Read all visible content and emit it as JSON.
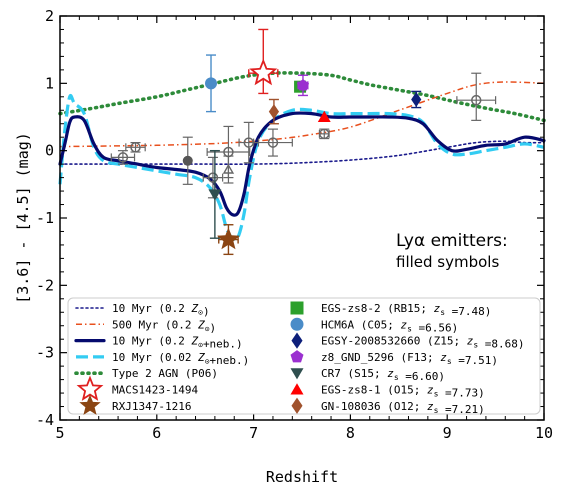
{
  "chart_data": {
    "type": "scatter",
    "xlabel": "Redshift",
    "ylabel": "[3.6] - [4.5] (mag)",
    "xlim": [
      5,
      10
    ],
    "ylim": [
      -4,
      2
    ],
    "x_ticks": [
      "5",
      "6",
      "7",
      "8",
      "9",
      "10"
    ],
    "y_ticks": [
      "-4",
      "-3",
      "-2",
      "-1",
      "0",
      "1",
      "2"
    ],
    "grid": false,
    "legend_location": "lower-center",
    "annotation": {
      "line1": "Lyα emitters:",
      "line2": "filled symbols"
    },
    "colors": {
      "myr10_02": "#1a1a8c",
      "myr500": "#e8501e",
      "neb02": "#050a6e",
      "neb002": "#33ccf2",
      "agn": "#2e8b3a",
      "open_circle": "#666666",
      "macs": "#e02020",
      "rxj": "#8b4513",
      "rb15": "#2ca02c",
      "c05": "#4a8cc8",
      "z15": "#0d1f7a",
      "f13": "#9b30d0",
      "s15": "#2f4f4f",
      "o15": "#ff0000",
      "o12": "#a0522d"
    },
    "series": [
      {
        "id": "myr10_02",
        "name": "10 Myr (0.2 Z_sun)",
        "style": "dotted",
        "x": [
          5.0,
          5.5,
          6.0,
          6.5,
          7.0,
          7.5,
          8.0,
          8.5,
          9.0,
          9.3,
          9.6,
          9.8,
          10.0
        ],
        "y": [
          -0.2,
          -0.2,
          -0.2,
          -0.2,
          -0.2,
          -0.18,
          -0.14,
          -0.07,
          0.05,
          0.12,
          0.14,
          0.12,
          0.12
        ]
      },
      {
        "id": "myr500",
        "name": "500 Myr (0.2 Z_sun)",
        "style": "dashdot",
        "x": [
          5.0,
          5.5,
          6.0,
          6.5,
          6.8,
          7.0,
          7.3,
          7.6,
          8.0,
          8.5,
          9.0,
          9.3,
          9.6,
          10.0
        ],
        "y": [
          0.06,
          0.07,
          0.08,
          0.1,
          0.12,
          0.14,
          0.18,
          0.24,
          0.35,
          0.6,
          0.85,
          0.98,
          1.02,
          1.0
        ]
      },
      {
        "id": "neb02",
        "name": "10 Myr (0.2 Z_sun+neb.)",
        "style": "solid-thick",
        "x": [
          5.0,
          5.05,
          5.1,
          5.15,
          5.25,
          5.35,
          5.45,
          5.6,
          5.8,
          6.0,
          6.2,
          6.4,
          6.55,
          6.65,
          6.72,
          6.78,
          6.84,
          6.9,
          6.96,
          7.05,
          7.2,
          7.4,
          7.6,
          7.8,
          8.0,
          8.2,
          8.4,
          8.6,
          8.75,
          8.9,
          9.05,
          9.2,
          9.4,
          9.6,
          9.8,
          10.0
        ],
        "y": [
          -0.2,
          0.1,
          0.42,
          0.5,
          0.45,
          0.1,
          -0.1,
          -0.15,
          -0.2,
          -0.25,
          -0.28,
          -0.32,
          -0.42,
          -0.6,
          -0.85,
          -0.95,
          -0.92,
          -0.65,
          -0.2,
          0.2,
          0.45,
          0.55,
          0.55,
          0.5,
          0.5,
          0.5,
          0.5,
          0.48,
          0.4,
          0.15,
          0.0,
          0.02,
          0.08,
          0.1,
          0.2,
          0.15
        ]
      },
      {
        "id": "neb002",
        "name": "10 Myr (0.02 Z_sun+neb.)",
        "style": "dashed-thick",
        "x": [
          5.0,
          5.05,
          5.1,
          5.15,
          5.25,
          5.35,
          5.45,
          5.6,
          5.8,
          6.0,
          6.2,
          6.4,
          6.55,
          6.65,
          6.72,
          6.78,
          6.84,
          6.9,
          6.96,
          7.05,
          7.2,
          7.4,
          7.6,
          7.8,
          8.0,
          8.2,
          8.4,
          8.6,
          8.75,
          8.9,
          9.05,
          9.2,
          9.4,
          9.6,
          9.8,
          10.0
        ],
        "y": [
          -0.5,
          0.3,
          0.8,
          0.7,
          0.55,
          0.05,
          -0.15,
          -0.2,
          -0.25,
          -0.3,
          -0.35,
          -0.4,
          -0.55,
          -0.8,
          -1.15,
          -1.3,
          -1.28,
          -0.95,
          -0.4,
          0.15,
          0.45,
          0.6,
          0.6,
          0.55,
          0.55,
          0.55,
          0.55,
          0.52,
          0.42,
          0.1,
          -0.05,
          -0.05,
          0.0,
          0.05,
          0.1,
          0.05
        ]
      },
      {
        "id": "agn",
        "name": "Type 2 AGN (P06)",
        "style": "dotted-thick",
        "x": [
          5.0,
          5.3,
          5.6,
          6.0,
          6.3,
          6.6,
          6.9,
          7.2,
          7.5,
          7.8,
          8.0,
          8.2,
          8.5,
          8.8,
          9.1,
          9.4,
          9.7,
          10.0
        ],
        "y": [
          0.55,
          0.62,
          0.7,
          0.8,
          0.9,
          1.0,
          1.1,
          1.15,
          1.15,
          1.12,
          1.05,
          0.98,
          0.9,
          0.82,
          0.72,
          0.63,
          0.55,
          0.45
        ]
      }
    ],
    "open_points": [
      {
        "x": 5.65,
        "y": -0.1,
        "xerr": 0.12,
        "yerr_low": 0.1,
        "yerr_high": 0.1
      },
      {
        "x": 5.78,
        "y": 0.05,
        "xerr": 0.1,
        "yerr_low": 0.07,
        "yerr_high": 0.07
      },
      {
        "x": 6.58,
        "y": -0.4,
        "xerr": 0.1,
        "yerr_low": 0.3,
        "yerr_high": 0.3
      },
      {
        "x": 6.74,
        "y": -0.28,
        "xerr": 0.0,
        "yerr_low": 0.2,
        "yerr_high": 0.2,
        "shape": "triangle"
      },
      {
        "x": 6.74,
        "y": -0.02,
        "xerr": 0.22,
        "yerr_low": 0.38,
        "yerr_high": 0.38
      },
      {
        "x": 6.95,
        "y": 0.12,
        "xerr": 0.1,
        "yerr_low": 0.3,
        "yerr_high": 0.3
      },
      {
        "x": 7.2,
        "y": 0.12,
        "xerr": 0.2,
        "yerr_low": 0.2,
        "yerr_high": 0.2
      },
      {
        "x": 7.73,
        "y": 0.25,
        "xerr": 0.05,
        "yerr_low": 0.07,
        "yerr_high": 0.07
      },
      {
        "x": 9.3,
        "y": 0.75,
        "xerr": 0.2,
        "yerr_low": 0.3,
        "yerr_high": 0.4
      }
    ],
    "filled_gray_points": [
      {
        "x": 6.32,
        "y": -0.15,
        "xerr": 0.0,
        "yerr_low": 0.35,
        "yerr_high": 0.35
      }
    ],
    "named_points": [
      {
        "id": "macs",
        "x": 7.1,
        "y": 1.15,
        "xerr": 0.15,
        "yerr_low": 0.3,
        "yerr_high": 0.65,
        "shape": "star-open"
      },
      {
        "id": "rxj",
        "x": 6.74,
        "y": -1.32,
        "xerr": 0.1,
        "yerr_low": 0.22,
        "yerr_high": 0.22,
        "shape": "star"
      },
      {
        "id": "rb15",
        "x": 7.48,
        "y": 0.95,
        "xerr": 0.0,
        "yerr_low": 0.0,
        "yerr_high": 0.0,
        "shape": "square"
      },
      {
        "id": "c05",
        "x": 6.56,
        "y": 1.0,
        "xerr": 0.0,
        "yerr_low": 0.42,
        "yerr_high": 0.42,
        "shape": "circle"
      },
      {
        "id": "z15",
        "x": 8.68,
        "y": 0.76,
        "xerr": 0.0,
        "yerr_low": 0.12,
        "yerr_high": 0.12,
        "shape": "diamond"
      },
      {
        "id": "f13",
        "x": 7.51,
        "y": 0.97,
        "xerr": 0.05,
        "yerr_low": 0.15,
        "yerr_high": 0.15,
        "shape": "pentagon"
      },
      {
        "id": "s15",
        "x": 6.6,
        "y": -0.65,
        "xerr": 0.0,
        "yerr_low": 0.65,
        "yerr_high": 0.65,
        "shape": "triangle-down"
      },
      {
        "id": "o15",
        "x": 7.73,
        "y": 0.5,
        "xerr": 0.0,
        "yerr_low": 0.0,
        "yerr_high": 0.0,
        "shape": "triangle"
      },
      {
        "id": "o12",
        "x": 7.21,
        "y": 0.58,
        "xerr": 0.0,
        "yerr_low": 0.18,
        "yerr_high": 0.18,
        "shape": "diamond"
      }
    ],
    "legend_left": [
      {
        "key": "myr10_02",
        "label": "10 Myr (0.2 Z_⊙)"
      },
      {
        "key": "myr500",
        "label": "500 Myr (0.2 Z_⊙)"
      },
      {
        "key": "neb02",
        "label": "10 Myr (0.2 Z_⊙+neb.)"
      },
      {
        "key": "neb002",
        "label": "10 Myr (0.02 Z_⊙+neb.)"
      },
      {
        "key": "agn",
        "label": "Type 2 AGN (P06)"
      },
      {
        "key": "macs",
        "label": "MACS1423-1494"
      },
      {
        "key": "rxj",
        "label": "RXJ1347-1216"
      }
    ],
    "legend_right": [
      {
        "key": "rb15",
        "label": "EGS-zs8-2 (RB15; z_s =7.48)"
      },
      {
        "key": "c05",
        "label": "HCM6A (C05; z_s =6.56)"
      },
      {
        "key": "z15",
        "label": "EGSY-2008532660 (Z15; z_s =8.68)"
      },
      {
        "key": "f13",
        "label": "z8_GND_5296 (F13; z_s =7.51)"
      },
      {
        "key": "s15",
        "label": "CR7 (S15; z_s =6.60)"
      },
      {
        "key": "o15",
        "label": "EGS-zs8-1 (O15; z_s =7.73)"
      },
      {
        "key": "o12",
        "label": "GN-108036 (O12; z_s =7.21)"
      }
    ]
  }
}
